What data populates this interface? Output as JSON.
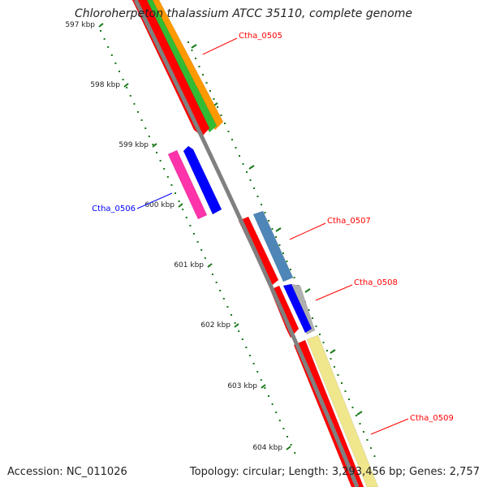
{
  "title": "Chloroherpeton thalassium ATCC 35110, complete genome",
  "accession_label": "Accession: NC_011026",
  "summary_label": "Topology: circular; Length: 3,293,456 bp; Genes: 2,757",
  "scale_ticks": [
    "597 kbp",
    "598 kbp",
    "599 kbp",
    "600 kbp",
    "601 kbp",
    "602 kbp",
    "603 kbp",
    "604 kbp"
  ],
  "genes": [
    {
      "id": "Ctha_0505",
      "strand": "forward",
      "color": "#ff0000"
    },
    {
      "id": "Ctha_0506",
      "strand": "reverse",
      "color": "#0000ff"
    },
    {
      "id": "Ctha_0507",
      "strand": "forward",
      "color": "#ff0000"
    },
    {
      "id": "Ctha_0508",
      "strand": "forward",
      "color": "#ff0000"
    },
    {
      "id": "Ctha_0509",
      "strand": "forward",
      "color": "#ff0000"
    }
  ],
  "colors": {
    "backbone": "#808080",
    "tick": "#1a7a1a",
    "cds_forward": "#ff0000",
    "cds_reverse": "#0000ff",
    "cog_green": "#33bb33",
    "cog_orange": "#ff9900",
    "cog_steelblue": "#4f86b8",
    "cog_magenta": "#ff33aa",
    "cog_yellow": "#f0e68c",
    "cog_grey": "#b0b0b0"
  }
}
